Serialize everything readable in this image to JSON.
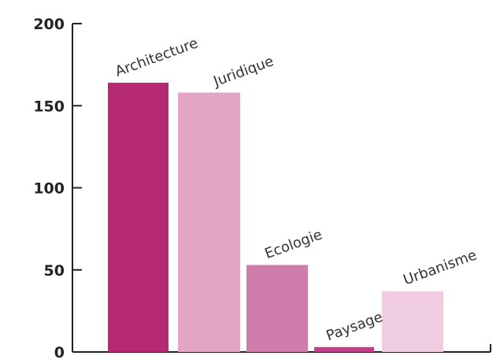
{
  "chart_data": {
    "type": "bar",
    "title": "",
    "xlabel": "",
    "ylabel": "",
    "categories": [
      "Architecture",
      "Juridique",
      "Ecologie",
      "Paysage",
      "Urbanisme"
    ],
    "values": [
      164,
      158,
      53,
      3,
      37
    ],
    "colors": [
      "#b52a73",
      "#e2a5c4",
      "#cf7eac",
      "#c2408a",
      "#f0cce0"
    ],
    "ylim": [
      0,
      200
    ],
    "yticks": [
      0,
      50,
      100,
      150,
      200
    ],
    "grid": false,
    "legend": "none"
  }
}
